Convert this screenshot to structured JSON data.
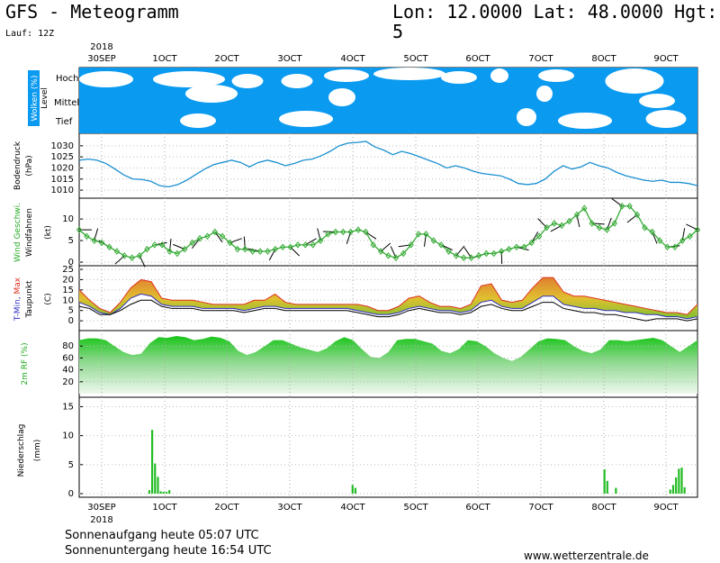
{
  "header": {
    "title": "GFS - Meteogramm",
    "location": "Lon: 12.0000 Lat: 48.0000 Hgt: 5",
    "run": "Lauf: 12Z"
  },
  "footer": {
    "sunrise": "Sonnenaufgang heute 05:07 UTC",
    "sunset": "Sonnenuntergang heute 16:54 UTC",
    "site": "www.wetterzentrale.de"
  },
  "chart_data": {
    "type": "meteogram",
    "x_ticks": [
      "30SEP",
      "1OCT",
      "2OCT",
      "3OCT",
      "4OCT",
      "5OCT",
      "6OCT",
      "7OCT",
      "8OCT",
      "9OCT"
    ],
    "year_label": "2018",
    "panels": [
      {
        "id": "clouds",
        "type": "area",
        "ylabel": "Wolken (%)",
        "ylabel2": "Level",
        "levels": [
          "Hoch",
          "Mittel",
          "Tief"
        ]
      },
      {
        "id": "pressure",
        "type": "line",
        "ylabel": "Bodendruck",
        "unit": "(hPa)",
        "ylim": [
          1008,
          1034
        ],
        "yticks": [
          1010,
          1015,
          1020,
          1025,
          1030
        ],
        "color": "#1a8fd0",
        "values": [
          1023.5,
          1024,
          1023.5,
          1022,
          1019.5,
          1016.8,
          1015,
          1014.8,
          1014,
          1012,
          1011.5,
          1012.5,
          1014.5,
          1017,
          1019.5,
          1021.5,
          1022.5,
          1023.5,
          1022.5,
          1020.5,
          1022.5,
          1023.5,
          1022.5,
          1021,
          1022,
          1023.5,
          1024,
          1025.5,
          1027.5,
          1030,
          1031.2,
          1031.5,
          1032,
          1029.5,
          1028,
          1026,
          1027.5,
          1026.5,
          1025,
          1023.5,
          1022,
          1020,
          1021,
          1020,
          1018.5,
          1017.5,
          1017,
          1016.5,
          1015,
          1013,
          1012.5,
          1013,
          1015,
          1018.5,
          1021,
          1019.5,
          1020.5,
          1022.5,
          1021,
          1020,
          1018,
          1016.5,
          1015.5,
          1014.5,
          1014,
          1014.5,
          1013.5,
          1013.5,
          1013,
          1012
        ]
      },
      {
        "id": "wind",
        "type": "line",
        "ylabel": "Wind Geschwi.",
        "ylabel2": "Windfahnen",
        "unit": "(kt)",
        "ylim": [
          0,
          14
        ],
        "yticks": [
          0,
          5,
          10
        ],
        "color": "#33aa33",
        "values": [
          7.5,
          6,
          5,
          4.5,
          3.5,
          2.5,
          1.5,
          1,
          1.5,
          3,
          4,
          4,
          2.5,
          2,
          3,
          4.5,
          5.5,
          6,
          7,
          6,
          4.5,
          3,
          3,
          2.5,
          2.5,
          2.5,
          3,
          3.5,
          3.5,
          4,
          4,
          4,
          5,
          6.5,
          7,
          7,
          7,
          7.5,
          7,
          4,
          2.5,
          1.5,
          1,
          2,
          4,
          6.5,
          6.5,
          5,
          4,
          2.5,
          1.5,
          1,
          1,
          1.5,
          2,
          2,
          2.5,
          3,
          3.5,
          3.5,
          4.5,
          6,
          8,
          9,
          8.5,
          9.5,
          11,
          12.5,
          9,
          8,
          7.5,
          9,
          13,
          13,
          11,
          8,
          7,
          5,
          3.5,
          3.5,
          5,
          6,
          7.5
        ]
      },
      {
        "id": "temp",
        "type": "area",
        "ylabel": "T-Min, Max",
        "ylabel2": "Taupunkt",
        "unit": "(C)",
        "ylim": [
          -3,
          25
        ],
        "yticks": [
          0,
          5,
          10,
          15,
          20,
          25
        ],
        "series": [
          {
            "name": "T-Max",
            "color": "#e03020",
            "values": [
              15,
              10,
              6,
              4,
              9,
              16,
              20,
              19,
              11,
              10,
              10,
              10,
              9,
              8,
              8,
              8,
              8,
              10,
              10,
              13,
              9,
              8,
              8,
              8,
              8,
              8,
              8,
              8,
              7,
              5,
              5,
              7,
              11,
              12,
              9,
              7,
              7,
              6,
              8,
              17,
              18,
              10,
              9,
              10,
              16,
              21,
              21,
              14,
              12,
              12,
              11,
              10,
              9,
              8,
              7,
              6,
              5,
              4,
              4,
              3,
              8
            ]
          },
          {
            "name": "T-Min",
            "color": "#3030c0",
            "values": [
              9,
              7,
              4,
              3,
              6,
              11,
              13,
              12,
              8,
              7,
              7,
              7,
              6,
              6,
              6,
              6,
              5,
              6,
              7,
              7,
              6,
              6,
              6,
              6,
              6,
              6,
              6,
              5,
              4,
              3,
              3,
              4,
              6,
              7,
              6,
              5,
              5,
              4,
              5,
              9,
              10,
              7,
              6,
              6,
              9,
              12,
              12,
              8,
              7,
              6,
              6,
              5,
              5,
              4,
              4,
              3,
              3,
              2,
              2,
              1,
              2
            ]
          },
          {
            "name": "Taupunkt",
            "color": "#000000",
            "values": [
              7,
              6,
              3,
              3,
              5,
              8,
              10,
              10,
              7,
              6,
              6,
              6,
              5,
              5,
              5,
              5,
              4,
              5,
              6,
              6,
              5,
              5,
              5,
              5,
              5,
              5,
              5,
              4,
              3,
              2,
              2,
              3,
              5,
              6,
              5,
              4,
              4,
              3,
              4,
              7,
              8,
              6,
              5,
              5,
              7,
              9,
              9,
              6,
              5,
              4,
              4,
              3,
              3,
              2,
              1,
              0,
              1,
              1,
              1,
              0,
              1
            ]
          }
        ]
      },
      {
        "id": "rh",
        "type": "area",
        "ylabel": "2m RF (%)",
        "unit": "",
        "ylim": [
          0,
          100
        ],
        "yticks": [
          20,
          40,
          60,
          80
        ],
        "color": "#22bb22",
        "values": [
          90,
          93,
          93,
          90,
          80,
          70,
          65,
          67,
          85,
          95,
          94,
          97,
          95,
          90,
          92,
          96,
          94,
          88,
          72,
          65,
          70,
          80,
          90,
          90,
          84,
          78,
          74,
          70,
          76,
          88,
          95,
          90,
          75,
          62,
          60,
          70,
          90,
          92,
          92,
          88,
          84,
          72,
          68,
          75,
          90,
          88,
          80,
          68,
          60,
          55,
          62,
          75,
          88,
          93,
          92,
          90,
          80,
          72,
          68,
          74,
          90,
          90,
          88,
          90,
          92,
          94,
          90,
          80,
          70,
          80,
          90
        ]
      },
      {
        "id": "precip",
        "type": "bar",
        "ylabel": "Niederschlag",
        "unit": "(mm)",
        "ylim": [
          0,
          16
        ],
        "yticks": [
          0,
          5,
          10,
          15
        ],
        "color": "#22bb22",
        "values": [
          0,
          0,
          0,
          0,
          0,
          0,
          0,
          0,
          0,
          0,
          0,
          0,
          0,
          0,
          0,
          0,
          0,
          0,
          0,
          0,
          0,
          0,
          0,
          0,
          0.6,
          11,
          5.2,
          2.9,
          0.4,
          0.3,
          0.3,
          0.6,
          0,
          0,
          0,
          0,
          0,
          0,
          0,
          0,
          0,
          0,
          0,
          0,
          0,
          0,
          0,
          0,
          0,
          0,
          0,
          0,
          0,
          0,
          0,
          0,
          0,
          0,
          0,
          0,
          0,
          0,
          0,
          0,
          0,
          0,
          0,
          0,
          0,
          0,
          0,
          0,
          0,
          0,
          0,
          0,
          0,
          0,
          0,
          0,
          0,
          0,
          0,
          0,
          0,
          0,
          0,
          0,
          0,
          0,
          0,
          0,
          0,
          0,
          0,
          1.5,
          1,
          0,
          0,
          0,
          0,
          0,
          0,
          0,
          0,
          0,
          0,
          0,
          0,
          0,
          0,
          0,
          0,
          0,
          0,
          0,
          0,
          0,
          0,
          0,
          0,
          0,
          0,
          0,
          0,
          0,
          0,
          0,
          0,
          0,
          0,
          0,
          0,
          0,
          0,
          0,
          0,
          0,
          0,
          0,
          0,
          0,
          0,
          0,
          0,
          0,
          0,
          0,
          0,
          0,
          0,
          0,
          0,
          0,
          0,
          0,
          0,
          0,
          0,
          0,
          0,
          0,
          0,
          0,
          0,
          0,
          0,
          0,
          0,
          0,
          0,
          0,
          0,
          0,
          0,
          0,
          0,
          0,
          0,
          0,
          0,
          0,
          0,
          4.2,
          2.2,
          0,
          0,
          1,
          0,
          0,
          0,
          0,
          0,
          0,
          0,
          0,
          0,
          0,
          0,
          0,
          0,
          0,
          0,
          0,
          0,
          0,
          0.7,
          1.5,
          2.8,
          4.3,
          4.5,
          1.1,
          0,
          0,
          0,
          0
        ]
      }
    ]
  }
}
